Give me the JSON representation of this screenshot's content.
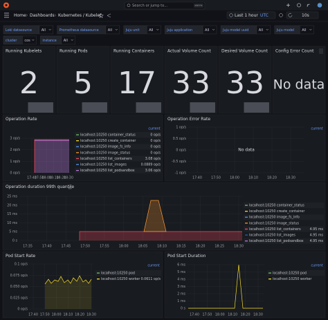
{
  "topbar": {
    "search": "Search or jump to...",
    "shortcut": "ctrl+k",
    "breadcrumbs": [
      "Home",
      "Dashboards",
      "Kubernetes / Kubelet"
    ],
    "time_range": "Last 1 hour",
    "timezone": "UTC",
    "refresh": "10s"
  },
  "variables": [
    {
      "label": "Loki datasource",
      "value": "All"
    },
    {
      "label": "Prometheus datasource",
      "value": "All"
    },
    {
      "label": "Juju unit",
      "value": "All"
    },
    {
      "label": "Juju application",
      "value": "All"
    },
    {
      "label": "Juju model uuid",
      "value": "All"
    },
    {
      "label": "Juju model",
      "value": "All"
    },
    {
      "label": "cluster",
      "value": "cos"
    },
    {
      "label": "instance",
      "value": "All"
    }
  ],
  "stats": [
    {
      "title": "Running Kubelets",
      "value": 2
    },
    {
      "title": "Running Pods",
      "value": 5
    },
    {
      "title": "Running Containers",
      "value": 17
    },
    {
      "title": "Actual Volume Count",
      "value": 33
    },
    {
      "title": "Desired Volume Count",
      "value": 33
    },
    {
      "title": "Config Error Count",
      "value": "No data"
    }
  ],
  "panels": [
    {
      "title": "Operation Rate",
      "yticks": [
        "3 op/s",
        "2 op/s",
        "1 op/s",
        "0 op/s"
      ],
      "xticks": [
        "17:40",
        "17:50",
        "18:00",
        "18:10",
        "18:20",
        "18:30"
      ],
      "legend_header": "current",
      "legend": [
        {
          "name": "localhost:10250 container_status",
          "color": "#73bf69",
          "value": "0 op/s"
        },
        {
          "name": "localhost:10250 create_container",
          "color": "#fade2a",
          "value": "0 op/s"
        },
        {
          "name": "localhost:10250 image_fs_info",
          "color": "#5794f2",
          "value": "0 op/s"
        },
        {
          "name": "localhost:10250 image_status",
          "color": "#ff9830",
          "value": "0 op/s"
        },
        {
          "name": "localhost:10250 list_containers",
          "color": "#f2495c",
          "value": "3.08 op/s"
        },
        {
          "name": "localhost:10250 list_images",
          "color": "#5794f2",
          "value": "0.0889 op/s"
        },
        {
          "name": "localhost:10250 list_podsandbox",
          "color": "#b877d9",
          "value": "3.06 op/s"
        }
      ]
    },
    {
      "title": "Operation Error Rate",
      "yticks": [
        "1 op/s",
        "0.5 op/s",
        "0 op/s",
        "-0.5 op/s",
        "-1 op/s"
      ],
      "xticks": [
        "17:40",
        "17:50",
        "18:00",
        "18:10",
        "18:20",
        "18:30"
      ],
      "legend_header": "current",
      "message": "No data",
      "legend": []
    },
    {
      "title": "Operation duration 99th quantile",
      "yticks": [
        "25 ms",
        "20 ms",
        "15 ms",
        "10 ms",
        "5 ms",
        "0 s"
      ],
      "xticks": [
        "17:35",
        "17:40",
        "17:45",
        "17:50",
        "17:55",
        "18:00",
        "18:05",
        "18:10",
        "18:15",
        "18:20",
        "18:25",
        "18:30"
      ],
      "legend": [
        {
          "name": "localhost:10250 container_status",
          "color": "#73bf69"
        },
        {
          "name": "localhost:10250 create_container",
          "color": "#fade2a"
        },
        {
          "name": "localhost:10250 image_fs_info",
          "color": "#5794f2"
        },
        {
          "name": "localhost:10250 image_status",
          "color": "#ff9830"
        },
        {
          "name": "localhost:10250 list_containers",
          "color": "#f2495c",
          "value": "4.95 ms"
        },
        {
          "name": "localhost:10250 list_images",
          "color": "#1f60c4",
          "value": "4.95 ms"
        },
        {
          "name": "localhost:10250 list_podsandbox",
          "color": "#b877d9",
          "value": "4.95 ms"
        }
      ]
    },
    {
      "title": "Pod Start Rate",
      "yticks": [
        "0.1 op/s",
        "0.075 op/s",
        "0.050 op/s",
        "0.025 op/s",
        "0 op/s"
      ],
      "xticks": [
        "17:40",
        "17:50",
        "18:00",
        "18:10",
        "18:20",
        "18:30"
      ],
      "legend_header": "current",
      "legend": [
        {
          "name": "localhost:10250 pod",
          "color": "#73bf69"
        },
        {
          "name": "localhost:10250 worker",
          "color": "#fade2a",
          "value": "0.0611 op/s"
        }
      ]
    },
    {
      "title": "Pod Start Duration",
      "yticks": [
        "6 ms",
        "5 ms",
        "4 ms",
        "3 ms",
        "2 ms",
        "1 ms",
        "0 s"
      ],
      "xticks": [
        "17:40",
        "17:50",
        "18:00",
        "18:10",
        "18:20",
        "18:30"
      ],
      "legend_header": "current",
      "legend": [
        {
          "name": "localhost:10250 pod",
          "color": "#73bf69"
        },
        {
          "name": "localhost:10250 worker",
          "color": "#fade2a"
        }
      ]
    }
  ]
}
